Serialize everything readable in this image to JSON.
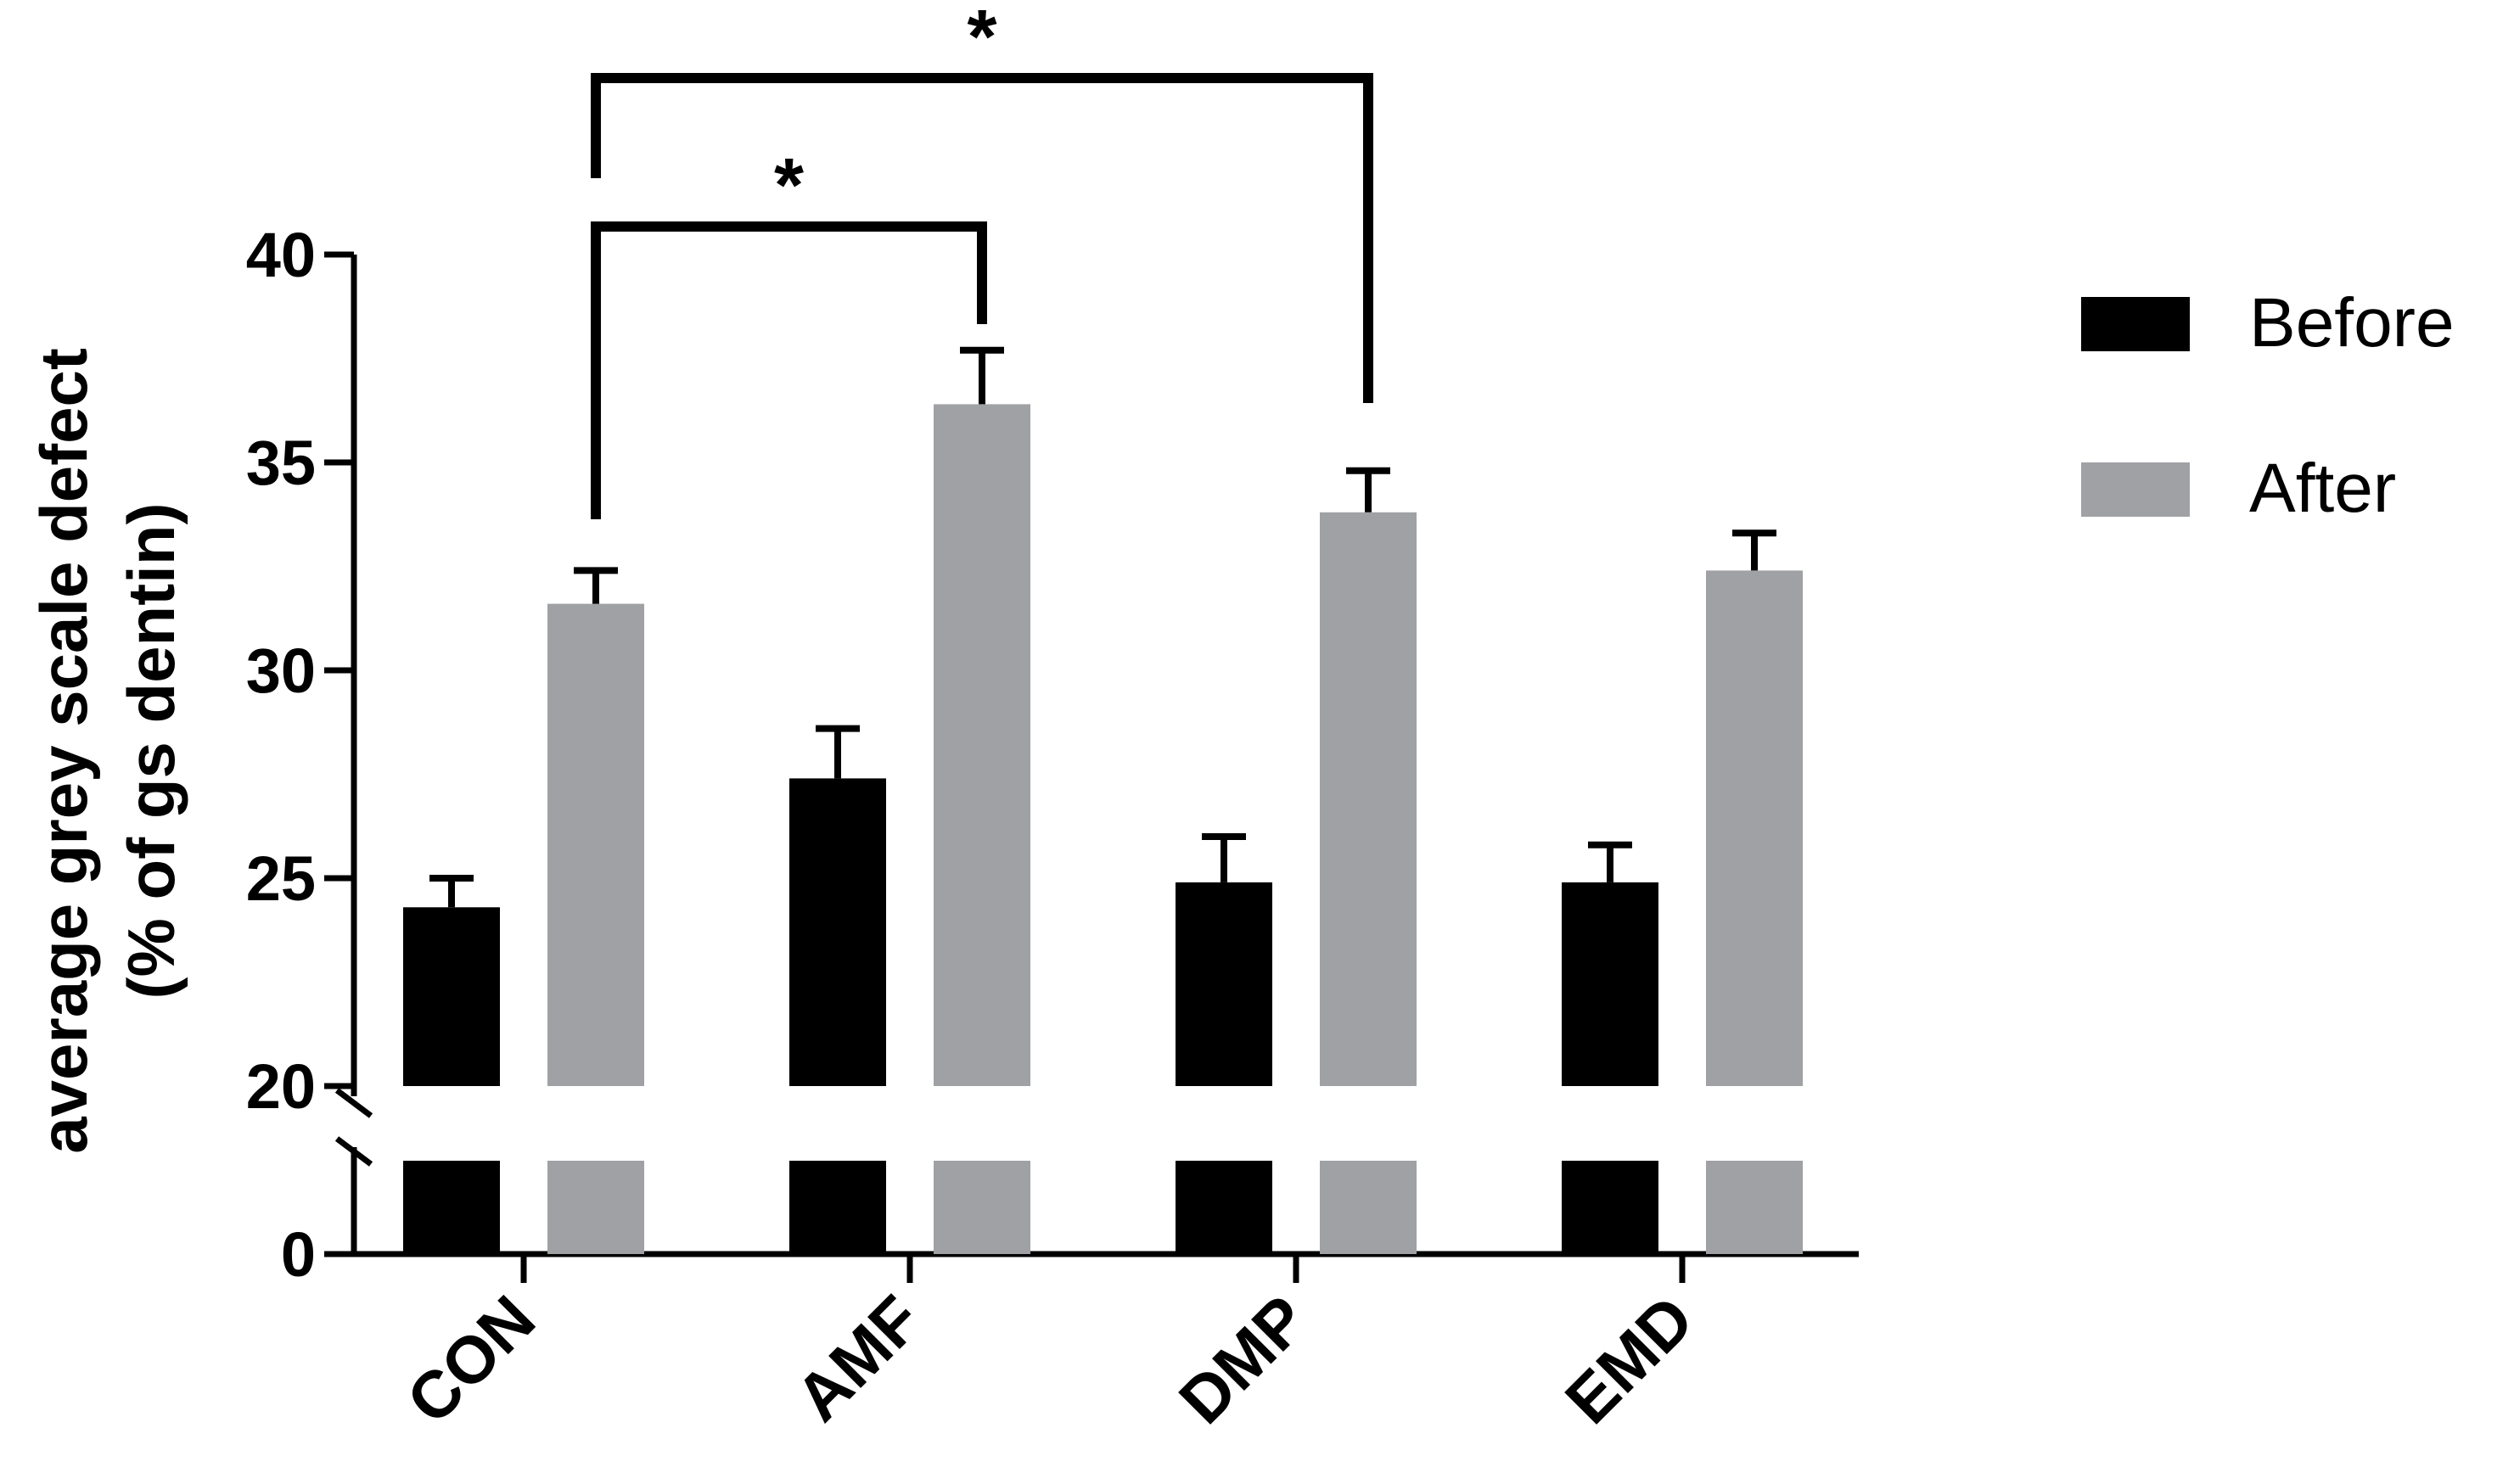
{
  "chart_data": {
    "type": "bar",
    "categories": [
      "CON",
      "AMF",
      "DMP",
      "EMD"
    ],
    "series": [
      {
        "name": "Before",
        "color": "#000000",
        "values": [
          24.3,
          27.4,
          24.9,
          24.9
        ],
        "errors": [
          0.7,
          1.2,
          1.1,
          0.9
        ]
      },
      {
        "name": "After",
        "color": "#a0a1a4",
        "values": [
          31.6,
          36.4,
          33.8,
          32.4
        ],
        "errors": [
          0.8,
          1.3,
          1.0,
          0.9
        ]
      }
    ],
    "ylabel_line1": "average grey scale defect",
    "ylabel_line2": "(% of gs dentin)",
    "ylim": [
      0,
      40
    ],
    "axis_break": [
      0,
      20
    ],
    "yticks": [
      0,
      20,
      25,
      30,
      35,
      40
    ],
    "legend_position": "top-right",
    "significance": [
      {
        "from": "CON",
        "to": "AMF",
        "label": "*"
      },
      {
        "from": "CON",
        "to": "DMP",
        "label": "*"
      }
    ]
  }
}
